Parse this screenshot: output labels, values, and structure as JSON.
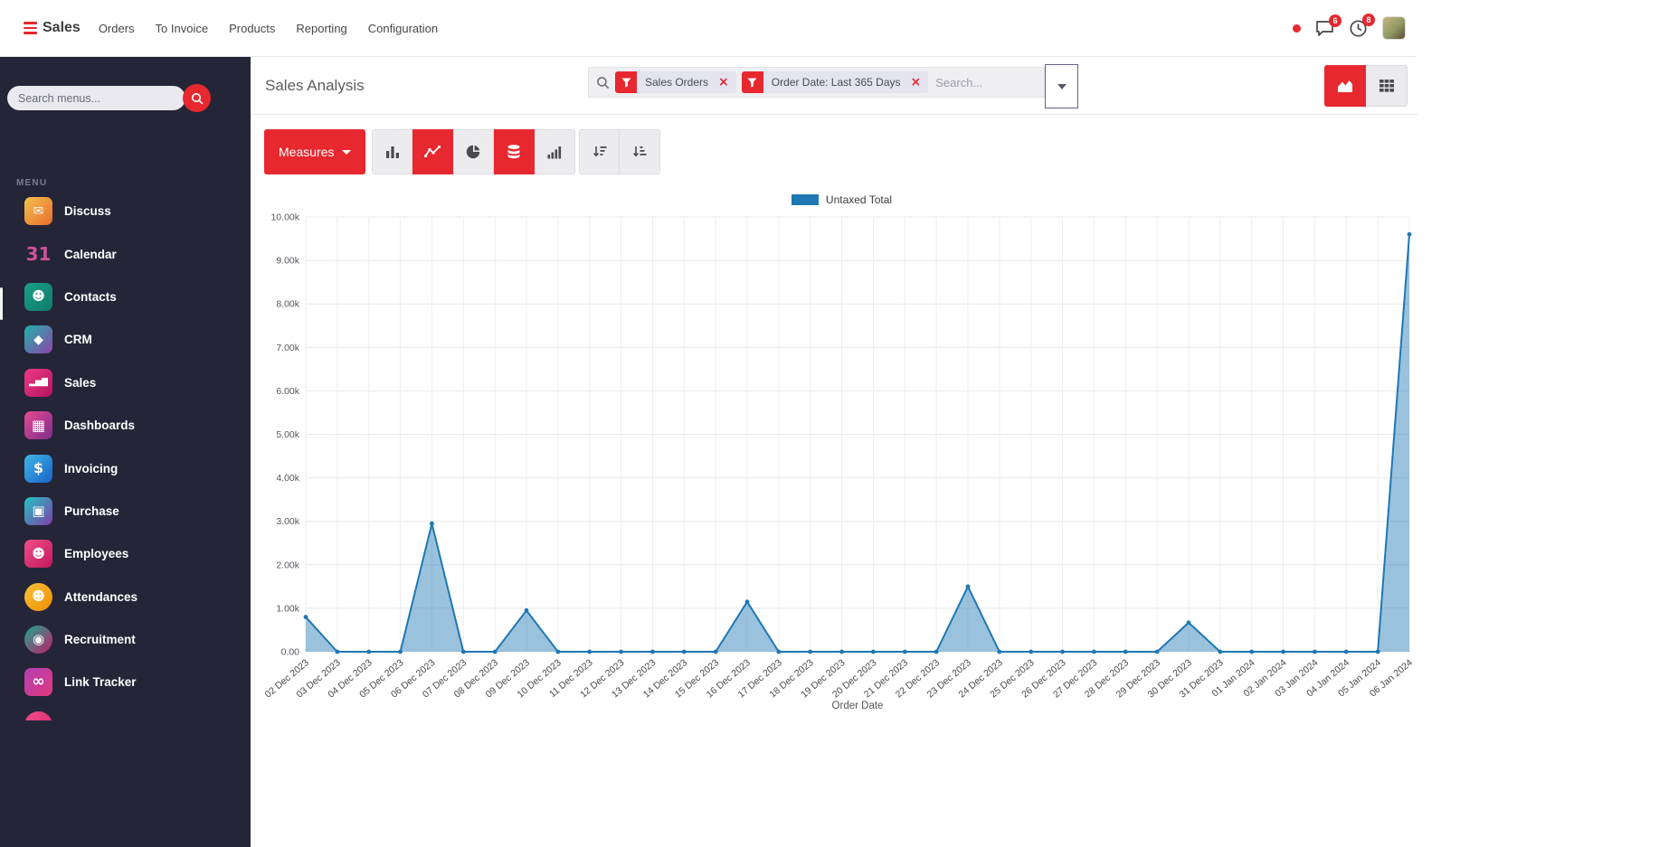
{
  "navbar": {
    "brand": "Sales",
    "items": [
      "Orders",
      "To Invoice",
      "Products",
      "Reporting",
      "Configuration"
    ],
    "badges": {
      "messages": "6",
      "activities": "8"
    }
  },
  "sidebar": {
    "search_placeholder": "Search menus...",
    "section_label": "MENU",
    "items": [
      {
        "label": "Discuss",
        "icon": "discuss-icon",
        "glyph": "✉",
        "c1": "#f3c14e",
        "c2": "#e96c2c",
        "shape": "square"
      },
      {
        "label": "Calendar",
        "icon": "calendar-icon",
        "glyph": "31",
        "c1": "",
        "c2": "",
        "shape": "square",
        "text_color": "#d0539b",
        "glyph_size": 20
      },
      {
        "label": "Contacts",
        "icon": "contacts-icon",
        "glyph": "☻",
        "c1": "#19a089",
        "c2": "#0f7a66",
        "shape": "square"
      },
      {
        "label": "CRM",
        "icon": "crm-icon",
        "glyph": "◆",
        "c1": "#20b2aa",
        "c2": "#8e44ad",
        "shape": "square"
      },
      {
        "label": "Sales",
        "icon": "sales-icon",
        "glyph": "▂▅▇",
        "c1": "#ee3b84",
        "c2": "#b3135f",
        "shape": "square",
        "glyph_size": 9
      },
      {
        "label": "Dashboards",
        "icon": "dashboards-icon",
        "glyph": "▦",
        "c1": "#e84a8f",
        "c2": "#7b2d8e",
        "shape": "square",
        "glyph_size": 16
      },
      {
        "label": "Invoicing",
        "icon": "invoicing-icon",
        "glyph": "$",
        "c1": "#41b6e8",
        "c2": "#1763c6",
        "shape": "square",
        "glyph_size": 16
      },
      {
        "label": "Purchase",
        "icon": "purchase-icon",
        "glyph": "▣",
        "c1": "#25c2c2",
        "c2": "#7d3fa8",
        "shape": "square",
        "glyph_size": 15
      },
      {
        "label": "Employees",
        "icon": "employees-icon",
        "glyph": "☻",
        "c1": "#ef4f8a",
        "c2": "#c2175b",
        "shape": "square"
      },
      {
        "label": "Attendances",
        "icon": "attendances-icon",
        "glyph": "☻",
        "c1": "#f8c33c",
        "c2": "#ef8d00",
        "shape": "circle"
      },
      {
        "label": "Recruitment",
        "icon": "recruitment-icon",
        "glyph": "◉",
        "c1": "#19a993",
        "c2": "#c21f66",
        "shape": "circle",
        "glyph_size": 15
      },
      {
        "label": "Link Tracker",
        "icon": "link-tracker-icon",
        "glyph": "∞",
        "c1": "#b13fb1",
        "c2": "#e1397e",
        "shape": "square",
        "glyph_size": 17
      },
      {
        "label": "",
        "icon": "app-icon",
        "glyph": "",
        "c1": "#ef4f8a",
        "c2": "#d6246e",
        "shape": "circle"
      }
    ]
  },
  "control_panel": {
    "title": "Sales Analysis",
    "search": {
      "placeholder": "Search...",
      "facets": [
        {
          "label": "Sales Orders"
        },
        {
          "label": "Order Date: Last 365 Days"
        }
      ]
    },
    "view_switcher": [
      {
        "name": "graph",
        "active": true
      },
      {
        "name": "pivot",
        "active": false
      }
    ]
  },
  "toolbar": {
    "measures_label": "Measures",
    "buttons": [
      {
        "name": "bar-chart",
        "active": false
      },
      {
        "name": "line-chart",
        "active": true
      },
      {
        "name": "pie-chart",
        "active": false
      },
      {
        "name": "stacked",
        "active": true
      },
      {
        "name": "cumulative",
        "active": false
      },
      {
        "name": "sort-desc",
        "active": false
      },
      {
        "name": "sort-asc",
        "active": false
      }
    ]
  },
  "chart_data": {
    "type": "area",
    "title": "",
    "legend": [
      {
        "label": "Untaxed Total",
        "color": "#1f77b4"
      }
    ],
    "x": [
      "02 Dec 2023",
      "03 Dec 2023",
      "04 Dec 2023",
      "05 Dec 2023",
      "06 Dec 2023",
      "07 Dec 2023",
      "08 Dec 2023",
      "09 Dec 2023",
      "10 Dec 2023",
      "11 Dec 2023",
      "12 Dec 2023",
      "13 Dec 2023",
      "14 Dec 2023",
      "15 Dec 2023",
      "16 Dec 2023",
      "17 Dec 2023",
      "18 Dec 2023",
      "19 Dec 2023",
      "20 Dec 2023",
      "21 Dec 2023",
      "22 Dec 2023",
      "23 Dec 2023",
      "24 Dec 2023",
      "25 Dec 2023",
      "26 Dec 2023",
      "27 Dec 2023",
      "28 Dec 2023",
      "29 Dec 2023",
      "30 Dec 2023",
      "31 Dec 2023",
      "01 Jan 2024",
      "02 Jan 2024",
      "03 Jan 2024",
      "04 Jan 2024",
      "05 Jan 2024",
      "06 Jan 2024"
    ],
    "series": [
      {
        "name": "Untaxed Total",
        "values": [
          800,
          0,
          0,
          0,
          2950,
          0,
          0,
          950,
          0,
          0,
          0,
          0,
          0,
          0,
          1150,
          0,
          0,
          0,
          0,
          0,
          0,
          1500,
          0,
          0,
          0,
          0,
          0,
          0,
          670,
          0,
          0,
          0,
          0,
          0,
          0,
          9600
        ]
      }
    ],
    "xlabel": "Order Date",
    "ylabel": "",
    "ylim": [
      0,
      10000
    ],
    "y_ticks": [
      "0.00",
      "1.00k",
      "2.00k",
      "3.00k",
      "4.00k",
      "5.00k",
      "6.00k",
      "7.00k",
      "8.00k",
      "9.00k",
      "10.00k"
    ],
    "grid": true,
    "legend_position": "top",
    "line_color": "#1f77b4",
    "fill_color": "rgba(31,119,180,0.45)"
  },
  "colors": {
    "accent": "#e7282f",
    "sidebar_bg": "#252538"
  }
}
